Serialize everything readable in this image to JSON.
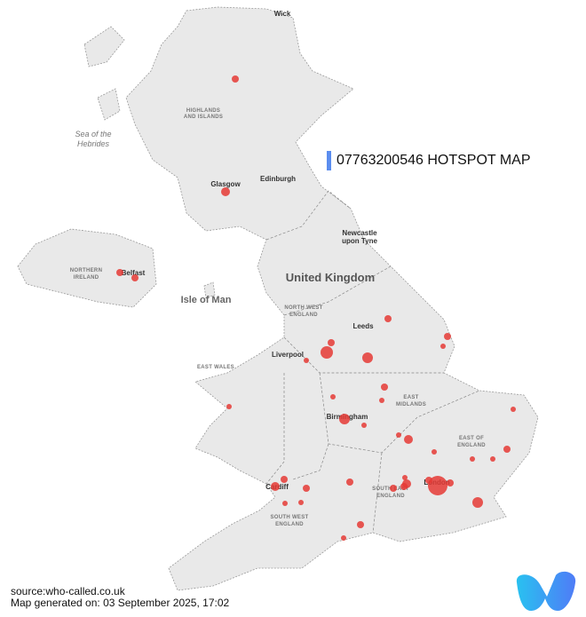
{
  "title": "07763200546 HOTSPOT MAP",
  "accent_color": "#5b8def",
  "dot_color": "#e53935",
  "footer": {
    "source": "source:who-called.co.uk",
    "generated": "Map generated on: 03 September 2025, 17:02"
  },
  "logo": {
    "name": "who-called-logo",
    "text": "w"
  },
  "map_labels": {
    "wick": "Wick",
    "highlands1": "HIGHLANDS",
    "highlands2": "AND ISLANDS",
    "sea1": "Sea of the",
    "sea2": "Hebrides",
    "glasgow": "Glasgow",
    "edinburgh": "Edinburgh",
    "newcastle1": "Newcastle",
    "newcastle2": "upon Tyne",
    "ni1": "NORTHERN",
    "ni2": "IRELAND",
    "belfast": "Belfast",
    "isle_of_man": "Isle of Man",
    "uk": "United Kingdom",
    "nw1": "NORTH WEST",
    "nw2": "ENGLAND",
    "leeds": "Leeds",
    "liverpool": "Liverpool",
    "east_wales": "EAST WALES",
    "em1": "EAST",
    "em2": "MIDLANDS",
    "birmingham": "Birmingham",
    "eoe1": "EAST OF",
    "eoe2": "ENGLAND",
    "cardiff": "Cardiff",
    "london": "London",
    "se1": "SOUTH EAST",
    "se2": "ENGLAND",
    "sw1": "SOUTH WEST",
    "sw2": "ENGLAND"
  },
  "hotspot_count": 40
}
